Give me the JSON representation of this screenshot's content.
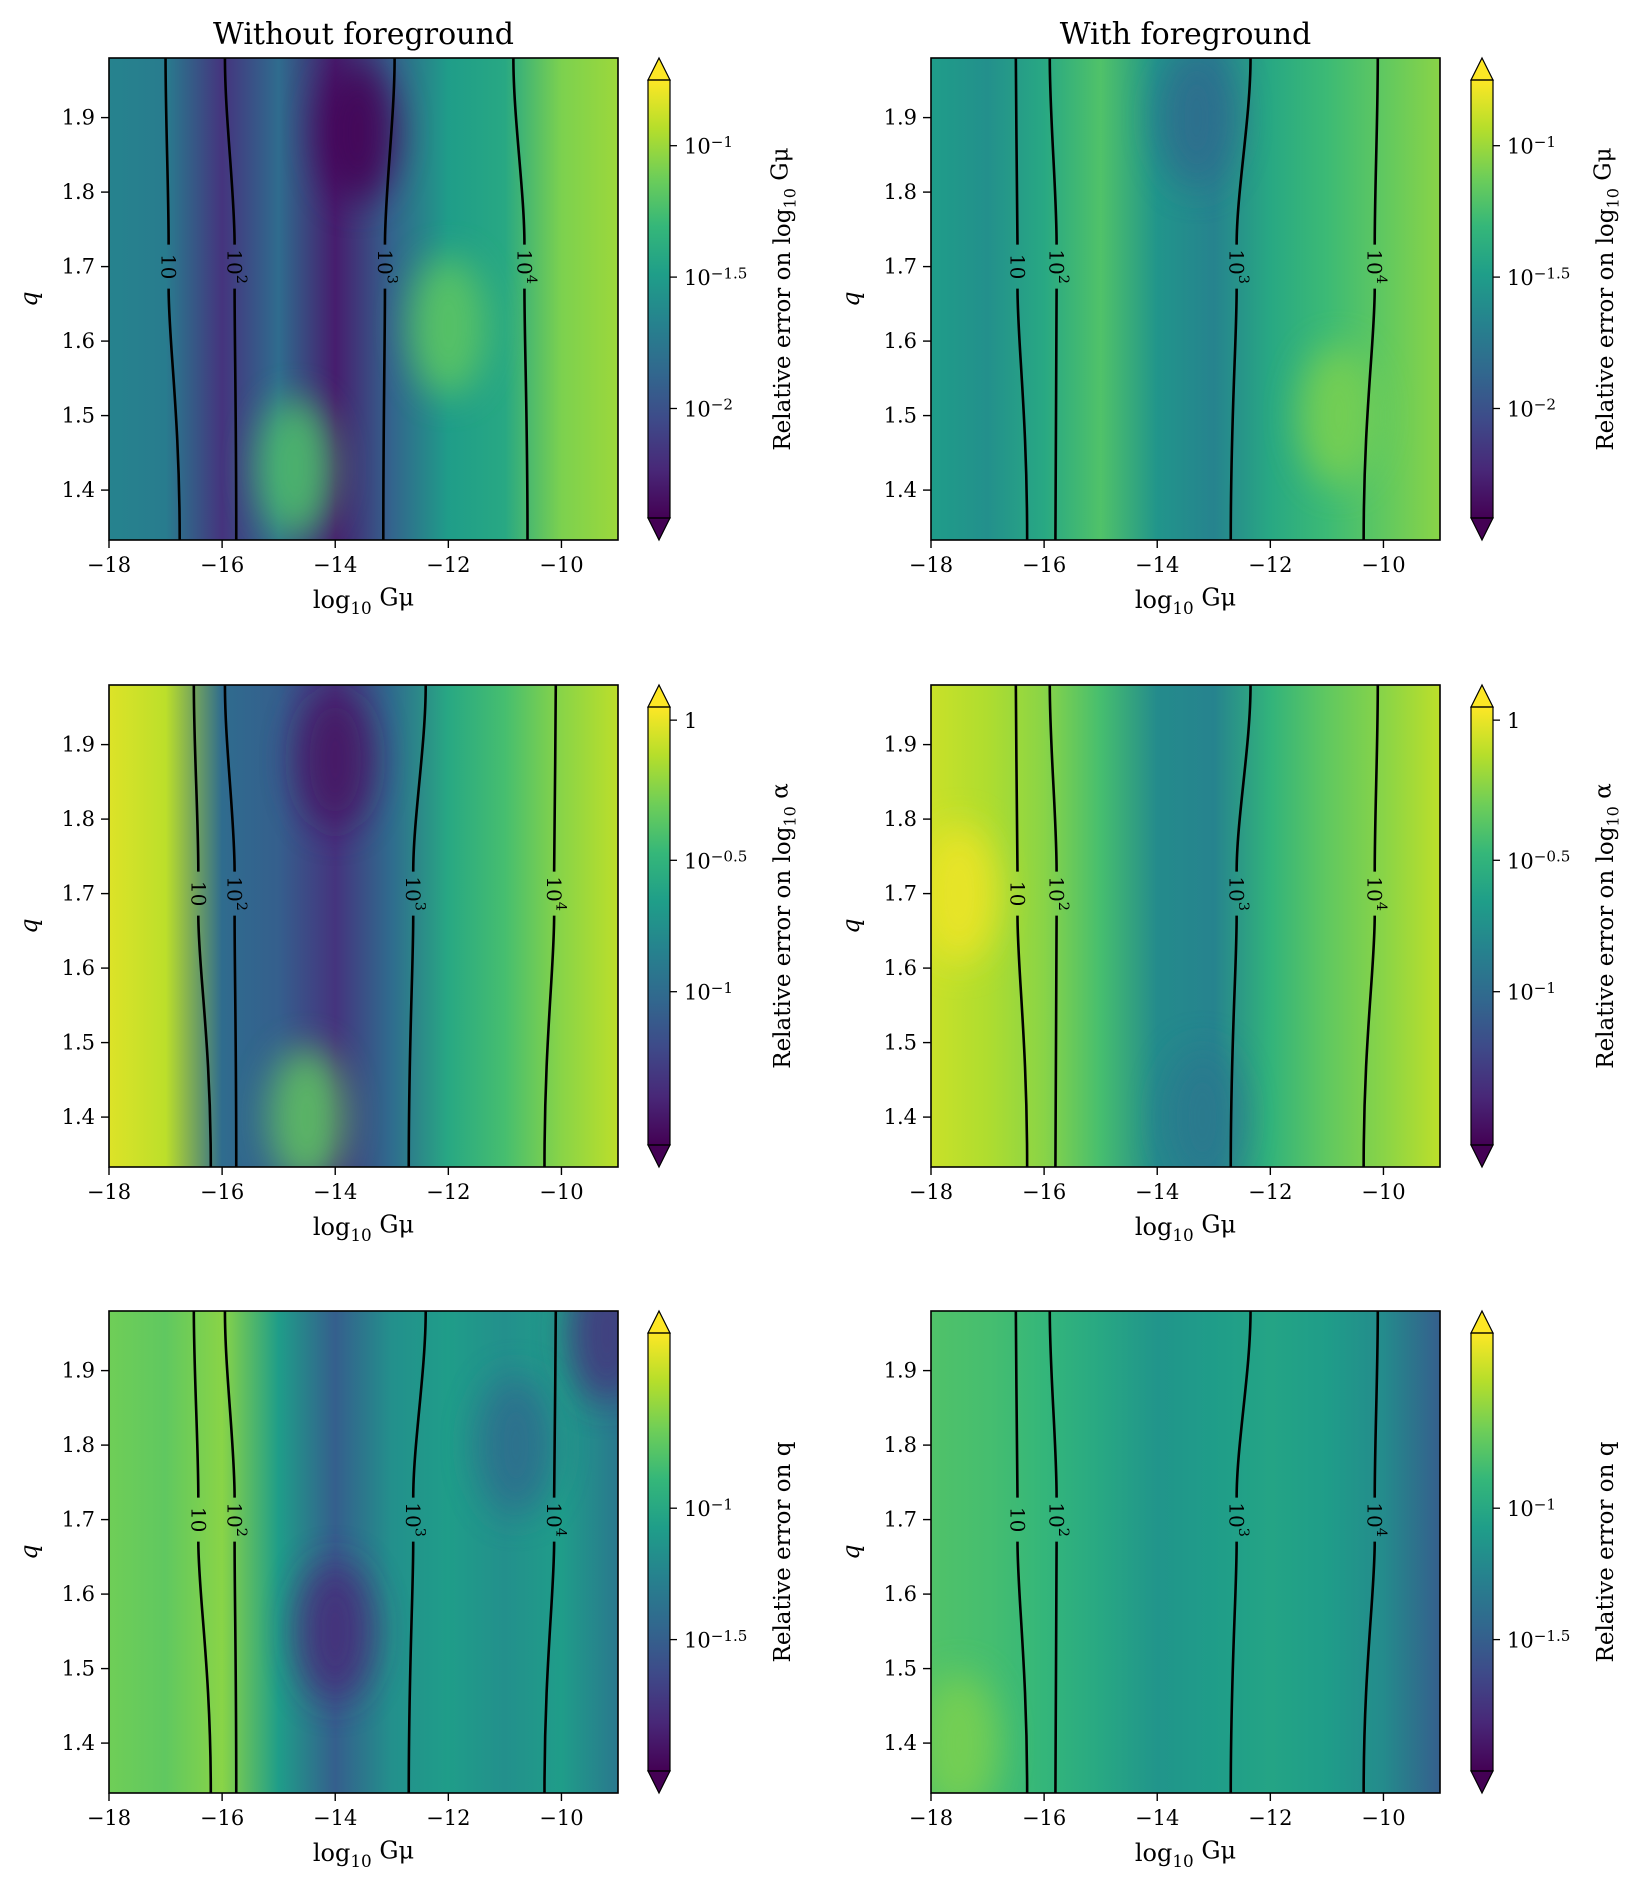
{
  "chart_data": [
    {
      "type": "heatmap",
      "title": "Without foreground",
      "xlabel": "log10 Gμ",
      "ylabel": "q",
      "xlim": [
        -18,
        -9
      ],
      "ylim": [
        1.333,
        1.98
      ],
      "xticks": [
        -18,
        -16,
        -14,
        -12,
        -10
      ],
      "xtick_labels": [
        "−18",
        "−16",
        "−14",
        "−12",
        "−10"
      ],
      "yticks": [
        1.4,
        1.5,
        1.6,
        1.7,
        1.8,
        1.9
      ],
      "ytick_labels": [
        "1.4",
        "1.5",
        "1.6",
        "1.7",
        "1.8",
        "1.9"
      ],
      "colorbar_label": "Relative error on log10 Gμ",
      "colorbar_ticks": [
        "10^−1",
        "10^−1.5",
        "10^−2"
      ],
      "colorbar_tick_positions": [
        0.85,
        0.55,
        0.25
      ],
      "field_profile_x": [
        -18,
        -17,
        -16,
        -15,
        -14,
        -13,
        -12,
        -11,
        -10,
        -9
      ],
      "field_profile_value": [
        0.45,
        0.42,
        0.15,
        0.35,
        0.08,
        0.32,
        0.55,
        0.6,
        0.8,
        0.85
      ],
      "field_blobs": [
        {
          "x": -13.6,
          "y": 1.88,
          "value": 0.0
        },
        {
          "x": -14.7,
          "y": 1.43,
          "value": 0.72
        },
        {
          "x": -12.0,
          "y": 1.62,
          "value": 0.75
        }
      ],
      "contours": [
        {
          "label": "10",
          "x_bottom": -16.75,
          "x_top": -17.0
        },
        {
          "label": "10^2",
          "x_bottom": -15.75,
          "x_top": -15.95
        },
        {
          "label": "10^3",
          "x_bottom": -13.15,
          "x_top": -12.95
        },
        {
          "label": "10^4",
          "x_bottom": -10.6,
          "x_top": -10.85
        }
      ]
    },
    {
      "type": "heatmap",
      "title": "With foreground",
      "xlabel": "log10 Gμ",
      "ylabel": "q",
      "xlim": [
        -18,
        -9
      ],
      "ylim": [
        1.333,
        1.98
      ],
      "xticks": [
        -18,
        -16,
        -14,
        -12,
        -10
      ],
      "xtick_labels": [
        "−18",
        "−16",
        "−14",
        "−12",
        "−10"
      ],
      "yticks": [
        1.4,
        1.5,
        1.6,
        1.7,
        1.8,
        1.9
      ],
      "ytick_labels": [
        "1.4",
        "1.5",
        "1.6",
        "1.7",
        "1.8",
        "1.9"
      ],
      "colorbar_label": "Relative error on log10 Gμ",
      "colorbar_ticks": [
        "10^−1",
        "10^−1.5",
        "10^−2"
      ],
      "colorbar_tick_positions": [
        0.85,
        0.55,
        0.25
      ],
      "field_profile_x": [
        -18,
        -17,
        -16,
        -15,
        -14,
        -13,
        -12,
        -11,
        -10,
        -9
      ],
      "field_profile_value": [
        0.55,
        0.5,
        0.6,
        0.72,
        0.52,
        0.45,
        0.6,
        0.68,
        0.75,
        0.82
      ],
      "field_blobs": [
        {
          "x": -13.3,
          "y": 1.9,
          "value": 0.35
        },
        {
          "x": -10.8,
          "y": 1.5,
          "value": 0.8
        }
      ],
      "contours": [
        {
          "label": "10",
          "x_bottom": -16.3,
          "x_top": -16.5
        },
        {
          "label": "10^2",
          "x_bottom": -15.8,
          "x_top": -15.9
        },
        {
          "label": "10^3",
          "x_bottom": -12.7,
          "x_top": -12.35
        },
        {
          "label": "10^4",
          "x_bottom": -10.35,
          "x_top": -10.1
        }
      ]
    },
    {
      "type": "heatmap",
      "title": "",
      "xlabel": "log10 Gμ",
      "ylabel": "q",
      "xlim": [
        -18,
        -9
      ],
      "ylim": [
        1.333,
        1.98
      ],
      "xticks": [
        -18,
        -16,
        -14,
        -12,
        -10
      ],
      "xtick_labels": [
        "−18",
        "−16",
        "−14",
        "−12",
        "−10"
      ],
      "yticks": [
        1.4,
        1.5,
        1.6,
        1.7,
        1.8,
        1.9
      ],
      "ytick_labels": [
        "1.4",
        "1.5",
        "1.6",
        "1.7",
        "1.8",
        "1.9"
      ],
      "colorbar_label": "Relative error on log10 α",
      "colorbar_ticks": [
        "1",
        "10^−0.5",
        "10^−1"
      ],
      "colorbar_tick_positions": [
        0.97,
        0.65,
        0.35
      ],
      "field_profile_x": [
        -18,
        -17,
        -16,
        -15,
        -14,
        -13,
        -12,
        -11,
        -10,
        -9
      ],
      "field_profile_value": [
        0.95,
        0.9,
        0.35,
        0.3,
        0.15,
        0.35,
        0.6,
        0.7,
        0.82,
        0.9
      ],
      "field_blobs": [
        {
          "x": -14.0,
          "y": 1.88,
          "value": 0.05
        },
        {
          "x": -14.5,
          "y": 1.4,
          "value": 0.75
        }
      ],
      "contours": [
        {
          "label": "10",
          "x_bottom": -16.2,
          "x_top": -16.5
        },
        {
          "label": "10^2",
          "x_bottom": -15.75,
          "x_top": -15.95
        },
        {
          "label": "10^3",
          "x_bottom": -12.7,
          "x_top": -12.4
        },
        {
          "label": "10^4",
          "x_bottom": -10.3,
          "x_top": -10.1
        }
      ]
    },
    {
      "type": "heatmap",
      "title": "",
      "xlabel": "log10 Gμ",
      "ylabel": "q",
      "xlim": [
        -18,
        -9
      ],
      "ylim": [
        1.333,
        1.98
      ],
      "xticks": [
        -18,
        -16,
        -14,
        -12,
        -10
      ],
      "xtick_labels": [
        "−18",
        "−16",
        "−14",
        "−12",
        "−10"
      ],
      "yticks": [
        1.4,
        1.5,
        1.6,
        1.7,
        1.8,
        1.9
      ],
      "ytick_labels": [
        "1.4",
        "1.5",
        "1.6",
        "1.7",
        "1.8",
        "1.9"
      ],
      "colorbar_label": "Relative error on log10 α",
      "colorbar_ticks": [
        "1",
        "10^−0.5",
        "10^−1"
      ],
      "colorbar_tick_positions": [
        0.97,
        0.65,
        0.35
      ],
      "field_profile_x": [
        -18,
        -17,
        -16,
        -15,
        -14,
        -13,
        -12,
        -11,
        -10,
        -9
      ],
      "field_profile_value": [
        0.92,
        0.88,
        0.82,
        0.7,
        0.48,
        0.45,
        0.65,
        0.75,
        0.82,
        0.9
      ],
      "field_blobs": [
        {
          "x": -13.2,
          "y": 1.4,
          "value": 0.4
        },
        {
          "x": -17.5,
          "y": 1.7,
          "value": 0.98
        }
      ],
      "contours": [
        {
          "label": "10",
          "x_bottom": -16.3,
          "x_top": -16.5
        },
        {
          "label": "10^2",
          "x_bottom": -15.8,
          "x_top": -15.9
        },
        {
          "label": "10^3",
          "x_bottom": -12.7,
          "x_top": -12.35
        },
        {
          "label": "10^4",
          "x_bottom": -10.35,
          "x_top": -10.1
        }
      ]
    },
    {
      "type": "heatmap",
      "title": "",
      "xlabel": "log10 Gμ",
      "ylabel": "q",
      "xlim": [
        -18,
        -9
      ],
      "ylim": [
        1.333,
        1.98
      ],
      "xticks": [
        -18,
        -16,
        -14,
        -12,
        -10
      ],
      "xtick_labels": [
        "−18",
        "−16",
        "−14",
        "−12",
        "−10"
      ],
      "yticks": [
        1.4,
        1.5,
        1.6,
        1.7,
        1.8,
        1.9
      ],
      "ytick_labels": [
        "1.4",
        "1.5",
        "1.6",
        "1.7",
        "1.8",
        "1.9"
      ],
      "colorbar_label": "Relative error on q",
      "colorbar_ticks": [
        "10^−1",
        "10^−1.5"
      ],
      "colorbar_tick_positions": [
        0.6,
        0.3
      ],
      "field_profile_x": [
        -18,
        -17,
        -16,
        -15,
        -14,
        -13,
        -12,
        -11,
        -10,
        -9
      ],
      "field_profile_value": [
        0.78,
        0.75,
        0.82,
        0.55,
        0.3,
        0.5,
        0.55,
        0.5,
        0.55,
        0.4
      ],
      "field_blobs": [
        {
          "x": -14.0,
          "y": 1.55,
          "value": 0.12
        },
        {
          "x": -9.2,
          "y": 1.95,
          "value": 0.15
        },
        {
          "x": -10.8,
          "y": 1.8,
          "value": 0.35
        }
      ],
      "contours": [
        {
          "label": "10",
          "x_bottom": -16.2,
          "x_top": -16.5
        },
        {
          "label": "10^2",
          "x_bottom": -15.75,
          "x_top": -15.95
        },
        {
          "label": "10^3",
          "x_bottom": -12.7,
          "x_top": -12.4
        },
        {
          "label": "10^4",
          "x_bottom": -10.3,
          "x_top": -10.1
        }
      ]
    },
    {
      "type": "heatmap",
      "title": "",
      "xlabel": "log10 Gμ",
      "ylabel": "q",
      "xlim": [
        -18,
        -9
      ],
      "ylim": [
        1.333,
        1.98
      ],
      "xticks": [
        -18,
        -16,
        -14,
        -12,
        -10
      ],
      "xtick_labels": [
        "−18",
        "−16",
        "−14",
        "−12",
        "−10"
      ],
      "yticks": [
        1.4,
        1.5,
        1.6,
        1.7,
        1.8,
        1.9
      ],
      "ytick_labels": [
        "1.4",
        "1.5",
        "1.6",
        "1.7",
        "1.8",
        "1.9"
      ],
      "colorbar_label": "Relative error on q",
      "colorbar_ticks": [
        "10^−1",
        "10^−1.5"
      ],
      "colorbar_tick_positions": [
        0.6,
        0.3
      ],
      "field_profile_x": [
        -18,
        -17,
        -16,
        -15,
        -14,
        -13,
        -12,
        -11,
        -10,
        -9
      ],
      "field_profile_value": [
        0.72,
        0.7,
        0.66,
        0.6,
        0.52,
        0.55,
        0.58,
        0.55,
        0.48,
        0.3
      ],
      "field_blobs": [
        {
          "x": -17.5,
          "y": 1.4,
          "value": 0.8
        }
      ],
      "contours": [
        {
          "label": "10",
          "x_bottom": -16.3,
          "x_top": -16.5
        },
        {
          "label": "10^2",
          "x_bottom": -15.8,
          "x_top": -15.9
        },
        {
          "label": "10^3",
          "x_bottom": -12.7,
          "x_top": -12.35
        },
        {
          "label": "10^4",
          "x_bottom": -10.35,
          "x_top": -10.1
        }
      ]
    }
  ],
  "colors": {
    "viridis": [
      "#440154",
      "#482878",
      "#3e4a89",
      "#31688e",
      "#26828e",
      "#1f9e89",
      "#35b779",
      "#6ece58",
      "#b5de2b",
      "#fde725"
    ],
    "contour": "#000000",
    "axis": "#000000"
  }
}
